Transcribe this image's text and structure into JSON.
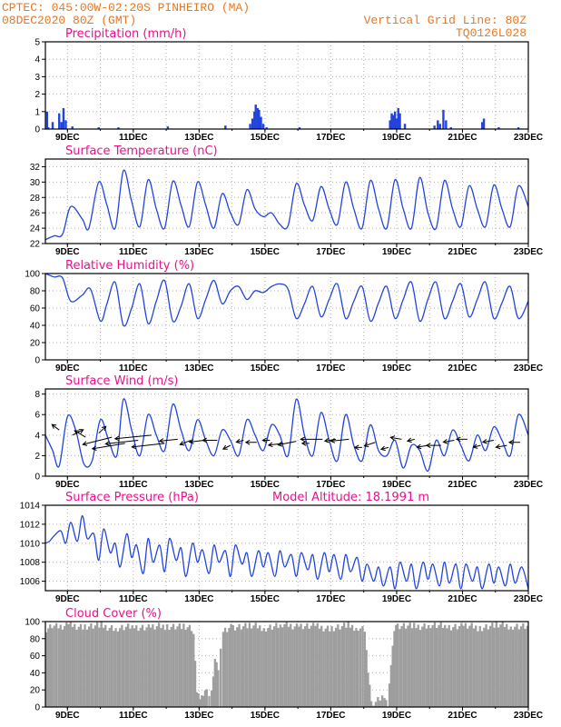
{
  "header": {
    "line1_left": "CPTEC:   045:00W-02:20S   PINHEIRO (MA)",
    "line2_left": "08DEC2020 80Z (GMT)",
    "line1_right": "Vertical Grid Line: 80Z",
    "line2_right": "TQ0126L028"
  },
  "colors": {
    "header": "#e87722",
    "title": "#e8128c",
    "series": "#2244dd",
    "cloud": "#9e9e9e",
    "grid": "#b0b0b0"
  },
  "chart_data": [
    {
      "id": "precip",
      "type": "bar",
      "title": "Precipitation (mm/h)",
      "ylim": [
        0,
        5
      ],
      "yticks": [
        0,
        1,
        2,
        3,
        4,
        5
      ],
      "x_tick_labels": [
        "9DEC",
        "11DEC",
        "13DEC",
        "15DEC",
        "17DEC",
        "19DEC",
        "21DEC",
        "23DEC"
      ],
      "x_tick_days": [
        9,
        11,
        13,
        15,
        17,
        19,
        21,
        23
      ],
      "xlim_days": [
        8.33,
        23.0
      ],
      "x_days": [
        8.38,
        8.42,
        8.55,
        8.75,
        8.82,
        8.88,
        8.95,
        9.15,
        9.95,
        10.55,
        12.05,
        13.8,
        14.55,
        14.62,
        14.68,
        14.72,
        14.78,
        14.82,
        14.88,
        14.95,
        15.05,
        16.05,
        18.8,
        18.85,
        18.9,
        18.95,
        19.0,
        19.05,
        19.1,
        19.25,
        20.15,
        20.25,
        20.32,
        20.42,
        20.5,
        20.65,
        21.6,
        21.65,
        22.1,
        22.7
      ],
      "values": [
        1.0,
        0.1,
        0.4,
        0.9,
        0.4,
        1.2,
        0.5,
        0.15,
        0.1,
        0.1,
        0.15,
        0.2,
        0.3,
        0.6,
        1.0,
        1.4,
        1.2,
        1.1,
        0.7,
        0.3,
        0.1,
        0.1,
        0.5,
        0.9,
        0.8,
        1.0,
        0.6,
        1.2,
        0.9,
        0.3,
        0.2,
        0.5,
        0.3,
        1.1,
        0.5,
        0.1,
        0.4,
        0.6,
        0.1,
        0.1
      ]
    },
    {
      "id": "temp",
      "type": "line",
      "title": "Surface Temperature (nC)",
      "ylim": [
        22,
        33
      ],
      "yticks": [
        22,
        24,
        26,
        28,
        30,
        32
      ],
      "x_tick_labels": [
        "9DEC",
        "11DEC",
        "13DEC",
        "15DEC",
        "17DEC",
        "19DEC",
        "21DEC",
        "23DEC"
      ],
      "xlim_days": [
        8.33,
        23.0
      ],
      "x_days": [
        8.33,
        8.6,
        8.85,
        9.1,
        9.45,
        9.65,
        9.95,
        10.2,
        10.45,
        10.7,
        10.95,
        11.2,
        11.45,
        11.7,
        11.95,
        12.2,
        12.45,
        12.7,
        12.95,
        13.2,
        13.45,
        13.7,
        13.95,
        14.2,
        14.45,
        14.7,
        14.95,
        15.2,
        15.45,
        15.7,
        15.95,
        16.2,
        16.45,
        16.7,
        16.95,
        17.2,
        17.45,
        17.7,
        17.95,
        18.2,
        18.45,
        18.7,
        18.95,
        19.2,
        19.45,
        19.7,
        19.95,
        20.2,
        20.45,
        20.7,
        20.95,
        21.2,
        21.45,
        21.7,
        21.95,
        22.2,
        22.45,
        22.7,
        23.0
      ],
      "values": [
        22.5,
        23.0,
        23.2,
        26.8,
        25.2,
        24.0,
        30.0,
        27.0,
        24.0,
        31.5,
        27.5,
        24.2,
        30.3,
        26.5,
        24.0,
        30.1,
        27.0,
        24.2,
        30.0,
        27.0,
        24.0,
        28.5,
        26.0,
        24.5,
        29.0,
        26.5,
        25.5,
        26.0,
        24.5,
        24.3,
        29.8,
        27.0,
        25.0,
        29.4,
        26.5,
        24.5,
        30.0,
        26.5,
        24.0,
        30.2,
        26.5,
        24.0,
        30.3,
        26.5,
        24.0,
        30.6,
        26.0,
        24.0,
        30.2,
        26.5,
        24.2,
        29.5,
        26.5,
        24.2,
        29.6,
        26.5,
        24.2,
        29.5,
        26.8
      ]
    },
    {
      "id": "rh",
      "type": "line",
      "title": "Relative Humidity (%)",
      "ylim": [
        0,
        100
      ],
      "yticks": [
        0,
        20,
        40,
        60,
        80,
        100
      ],
      "x_tick_labels": [
        "9DEC",
        "11DEC",
        "13DEC",
        "15DEC",
        "17DEC",
        "19DEC",
        "21DEC",
        "23DEC"
      ],
      "xlim_days": [
        8.33,
        23.0
      ],
      "x_days": [
        8.33,
        8.6,
        8.85,
        9.1,
        9.45,
        9.7,
        10.0,
        10.2,
        10.45,
        10.7,
        10.95,
        11.2,
        11.45,
        11.7,
        11.95,
        12.2,
        12.45,
        12.7,
        12.95,
        13.2,
        13.45,
        13.7,
        13.95,
        14.2,
        14.45,
        14.7,
        14.95,
        15.2,
        15.45,
        15.7,
        15.95,
        16.2,
        16.45,
        16.7,
        16.95,
        17.2,
        17.45,
        17.7,
        17.95,
        18.2,
        18.45,
        18.7,
        18.95,
        19.2,
        19.45,
        19.7,
        19.95,
        20.2,
        20.45,
        20.7,
        20.95,
        21.2,
        21.45,
        21.7,
        21.95,
        22.2,
        22.45,
        22.7,
        23.0
      ],
      "values": [
        100,
        96,
        95,
        68,
        75,
        82,
        45,
        65,
        90,
        40,
        60,
        88,
        42,
        68,
        92,
        45,
        62,
        88,
        48,
        70,
        92,
        65,
        80,
        85,
        70,
        80,
        78,
        85,
        88,
        82,
        48,
        65,
        85,
        50,
        70,
        88,
        48,
        68,
        85,
        45,
        66,
        85,
        48,
        70,
        90,
        45,
        70,
        90,
        48,
        68,
        88,
        50,
        70,
        90,
        48,
        66,
        85,
        48,
        68
      ]
    },
    {
      "id": "wind",
      "type": "line",
      "title": "Surface Wind (m/s)",
      "ylim": [
        0,
        8.5
      ],
      "yticks": [
        0,
        2,
        4,
        6,
        8
      ],
      "x_tick_labels": [
        "9DEC",
        "11DEC",
        "13DEC",
        "15DEC",
        "17DEC",
        "19DEC",
        "21DEC",
        "23DEC"
      ],
      "xlim_days": [
        8.33,
        23.0
      ],
      "x_days": [
        8.33,
        8.55,
        8.75,
        9.0,
        9.25,
        9.5,
        9.75,
        10.0,
        10.25,
        10.5,
        10.7,
        10.95,
        11.2,
        11.45,
        11.7,
        11.95,
        12.2,
        12.45,
        12.7,
        12.95,
        13.2,
        13.45,
        13.7,
        13.95,
        14.2,
        14.45,
        14.7,
        14.95,
        15.2,
        15.45,
        15.7,
        15.95,
        16.2,
        16.45,
        16.7,
        16.95,
        17.2,
        17.45,
        17.7,
        17.95,
        18.2,
        18.45,
        18.7,
        18.95,
        19.2,
        19.45,
        19.7,
        19.95,
        20.2,
        20.45,
        20.7,
        20.95,
        21.2,
        21.45,
        21.7,
        21.95,
        22.2,
        22.45,
        22.7,
        23.0
      ],
      "values": [
        4.0,
        2.5,
        1.0,
        5.8,
        4.5,
        1.2,
        1.5,
        5.5,
        3.5,
        2.0,
        7.5,
        4.5,
        2.0,
        6.0,
        4.0,
        2.5,
        7.0,
        4.5,
        2.5,
        5.5,
        3.5,
        2.0,
        4.5,
        3.5,
        2.0,
        5.5,
        4.0,
        2.5,
        5.0,
        4.0,
        2.0,
        7.5,
        4.0,
        2.0,
        6.2,
        3.5,
        1.5,
        6.0,
        3.0,
        1.5,
        5.0,
        2.5,
        2.0,
        3.5,
        0.8,
        3.0,
        2.5,
        0.5,
        3.5,
        2.0,
        4.5,
        3.0,
        1.5,
        4.0,
        2.5,
        4.8,
        3.5,
        2.0,
        6.0,
        4.0
      ],
      "wind_arrows": {
        "x_days": [
          8.75,
          9.15,
          9.55,
          9.95,
          10.35,
          10.75,
          11.15,
          11.55,
          11.95,
          12.35,
          12.75,
          13.15,
          13.55,
          13.95,
          14.35,
          14.75,
          15.15,
          15.55,
          15.95,
          16.35,
          16.75,
          17.15,
          17.55,
          17.95,
          18.35,
          18.75,
          19.15,
          19.55,
          19.95,
          20.35,
          20.75,
          21.15,
          21.55,
          21.95,
          22.35,
          22.75
        ],
        "y_values": [
          4.5,
          4.0,
          3.8,
          4.2,
          3.8,
          3.2,
          3.5,
          4.0,
          3.2,
          3.6,
          3.5,
          3.5,
          3.5,
          3.0,
          3.5,
          3.3,
          3.5,
          3.2,
          3.4,
          3.2,
          3.6,
          3.6,
          3.6,
          2.8,
          3.3,
          2.8,
          3.6,
          3.6,
          3.0,
          3.0,
          3.5,
          3.6,
          3.0,
          3.5,
          3.0,
          3.3
        ],
        "u": [
          -2,
          3,
          -3,
          2,
          -8,
          -9,
          -9,
          -10,
          -9,
          -5,
          -3,
          -4,
          -4,
          -2,
          -2,
          -3,
          -2,
          -4,
          -5,
          -2,
          -6,
          -3,
          -5,
          -2,
          -3,
          -2,
          -3,
          -2,
          -3,
          -4,
          -3,
          -3,
          -2,
          -3,
          -3,
          -3
        ],
        "v": [
          1.5,
          1.5,
          1.8,
          1.8,
          -2.0,
          -1.5,
          -1.0,
          -1.0,
          -1.0,
          -0.5,
          -1.2,
          -0.5,
          0.0,
          -1.0,
          -0.5,
          0.0,
          0.0,
          -0.5,
          -1.0,
          0.0,
          0.0,
          -0.5,
          -0.5,
          0.0,
          -1.0,
          -0.5,
          0.5,
          -0.5,
          -0.5,
          0.0,
          -0.5,
          0.0,
          -0.5,
          -0.5,
          -0.5,
          0.0
        ]
      }
    },
    {
      "id": "pres",
      "type": "line",
      "title": "Surface Pressure (hPa)",
      "subtitle": "Model Altitude: 18.1991 m",
      "ylim": [
        1005,
        1014
      ],
      "yticks": [
        1006,
        1008,
        1010,
        1012,
        1014
      ],
      "x_tick_labels": [
        "9DEC",
        "11DEC",
        "13DEC",
        "15DEC",
        "17DEC",
        "19DEC",
        "21DEC",
        "23DEC"
      ],
      "xlim_days": [
        8.33,
        23.0
      ],
      "x_days": [
        8.33,
        8.45,
        8.6,
        8.8,
        8.95,
        9.1,
        9.3,
        9.45,
        9.6,
        9.8,
        9.95,
        10.1,
        10.3,
        10.45,
        10.6,
        10.8,
        10.95,
        11.1,
        11.3,
        11.45,
        11.6,
        11.8,
        11.95,
        12.1,
        12.3,
        12.45,
        12.6,
        12.8,
        12.95,
        13.1,
        13.3,
        13.45,
        13.6,
        13.8,
        13.95,
        14.1,
        14.3,
        14.45,
        14.6,
        14.8,
        14.95,
        15.1,
        15.3,
        15.45,
        15.6,
        15.8,
        15.95,
        16.1,
        16.3,
        16.45,
        16.6,
        16.8,
        16.95,
        17.1,
        17.3,
        17.45,
        17.6,
        17.8,
        17.95,
        18.1,
        18.3,
        18.45,
        18.6,
        18.8,
        18.95,
        19.1,
        19.3,
        19.45,
        19.6,
        19.8,
        19.95,
        20.1,
        20.3,
        20.45,
        20.6,
        20.8,
        20.95,
        21.1,
        21.3,
        21.45,
        21.6,
        21.8,
        21.95,
        22.1,
        22.3,
        22.45,
        22.6,
        22.8,
        23.0
      ],
      "values": [
        1010.0,
        1010.2,
        1010.8,
        1011.3,
        1010.0,
        1012.2,
        1010.2,
        1012.9,
        1010.5,
        1011.0,
        1008.2,
        1011.5,
        1009.0,
        1010.0,
        1007.5,
        1011.0,
        1008.5,
        1009.8,
        1006.8,
        1010.5,
        1008.0,
        1009.8,
        1007.0,
        1010.5,
        1008.2,
        1009.5,
        1006.5,
        1010.0,
        1008.0,
        1009.3,
        1006.8,
        1009.8,
        1008.0,
        1009.2,
        1006.5,
        1009.8,
        1007.8,
        1009.0,
        1006.5,
        1009.2,
        1007.5,
        1009.0,
        1006.5,
        1009.2,
        1007.5,
        1008.8,
        1006.5,
        1009.0,
        1007.2,
        1008.8,
        1006.2,
        1009.0,
        1007.0,
        1008.8,
        1006.2,
        1008.8,
        1007.0,
        1008.5,
        1006.0,
        1007.8,
        1006.0,
        1007.5,
        1005.5,
        1007.5,
        1005.2,
        1008.0,
        1006.0,
        1007.8,
        1005.2,
        1008.0,
        1006.2,
        1007.8,
        1005.5,
        1008.0,
        1005.8,
        1007.8,
        1005.2,
        1007.8,
        1006.0,
        1007.5,
        1005.2,
        1007.8,
        1005.8,
        1007.5,
        1005.5,
        1007.8,
        1005.8,
        1007.5,
        1005.2
      ]
    },
    {
      "id": "cloud",
      "type": "area",
      "title": "Cloud Cover (%)",
      "ylim": [
        0,
        100
      ],
      "yticks": [
        0,
        20,
        40,
        60,
        80,
        100
      ],
      "x_tick_labels": [
        "9DEC",
        "11DEC",
        "13DEC",
        "15DEC",
        "17DEC",
        "19DEC",
        "21DEC",
        "23DEC"
      ],
      "xlim_days": [
        8.33,
        23.0
      ],
      "x_days": [
        8.33,
        8.5,
        8.7,
        9.0,
        9.5,
        10.0,
        10.5,
        11.0,
        11.5,
        12.0,
        12.5,
        12.8,
        12.9,
        13.0,
        13.1,
        13.2,
        13.35,
        13.45,
        13.55,
        13.7,
        14.0,
        14.5,
        15.0,
        15.5,
        16.0,
        16.5,
        17.0,
        17.5,
        17.8,
        18.0,
        18.1,
        18.2,
        18.4,
        18.6,
        18.7,
        18.8,
        18.9,
        19.0,
        19.5,
        20.0,
        20.5,
        21.0,
        21.5,
        22.0,
        22.5,
        23.0
      ],
      "values": [
        92,
        95,
        93,
        96,
        94,
        95,
        92,
        94,
        93,
        95,
        94,
        90,
        20,
        10,
        12,
        18,
        15,
        60,
        45,
        88,
        94,
        95,
        93,
        96,
        95,
        94,
        92,
        95,
        93,
        90,
        40,
        5,
        8,
        15,
        3,
        50,
        88,
        95,
        94,
        96,
        94,
        95,
        93,
        96,
        95,
        94
      ]
    }
  ]
}
